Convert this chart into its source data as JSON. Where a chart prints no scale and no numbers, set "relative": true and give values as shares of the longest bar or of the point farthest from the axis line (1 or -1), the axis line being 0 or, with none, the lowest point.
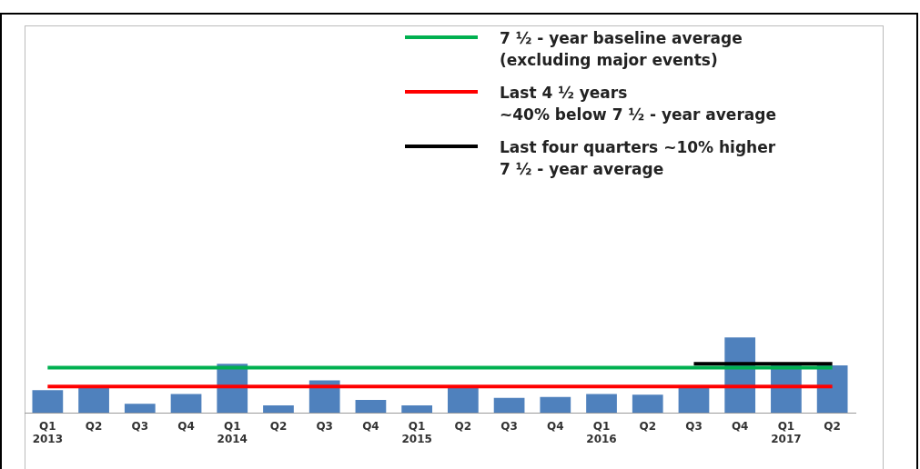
{
  "chart_data": {
    "type": "bar",
    "relative": true,
    "legend": "top right",
    "grid": false,
    "categories": [
      "Q1\n2013",
      "Q2",
      "Q3",
      "Q4",
      "Q1\n2014",
      "Q2",
      "Q3",
      "Q4",
      "Q1\n2015",
      "Q2",
      "Q3",
      "Q4",
      "Q1\n2016",
      "Q2",
      "Q3",
      "Q4",
      "Q1\n2017",
      "Q2"
    ],
    "series": [
      {
        "color": "#4f81bd",
        "values": [
          0.3,
          0.35,
          0.12,
          0.25,
          0.65,
          0.1,
          0.43,
          0.17,
          0.1,
          0.35,
          0.2,
          0.21,
          0.25,
          0.24,
          0.35,
          1,
          0.63,
          0.63
        ]
      },
      {
        "type": "line",
        "name": "7 ½ - year baseline average\n(excluding major events)",
        "color": "#00b050",
        "values": [
          0.6,
          0.6,
          0.6,
          0.6,
          0.6,
          0.6,
          0.6,
          0.6,
          0.6,
          0.6,
          0.6,
          0.6,
          0.6,
          0.6,
          0.6,
          0.6,
          0.6,
          0.6
        ]
      },
      {
        "type": "line",
        "name": "Last 4 ½ years\n~40% below 7 ½ - year average",
        "color": "#ff0000",
        "values": [
          0.35,
          0.35,
          0.35,
          0.35,
          0.35,
          0.35,
          0.35,
          0.35,
          0.35,
          0.35,
          0.35,
          0.35,
          0.35,
          0.35,
          0.35,
          0.35,
          0.35,
          0.35
        ]
      },
      {
        "type": "line",
        "name": "Last four quarters ~10% higher\n7 ½ - year average",
        "color": "#000000",
        "values": [
          null,
          null,
          null,
          null,
          null,
          null,
          null,
          null,
          null,
          null,
          null,
          null,
          null,
          null,
          0.65,
          0.65,
          0.65,
          0.65
        ]
      }
    ]
  }
}
